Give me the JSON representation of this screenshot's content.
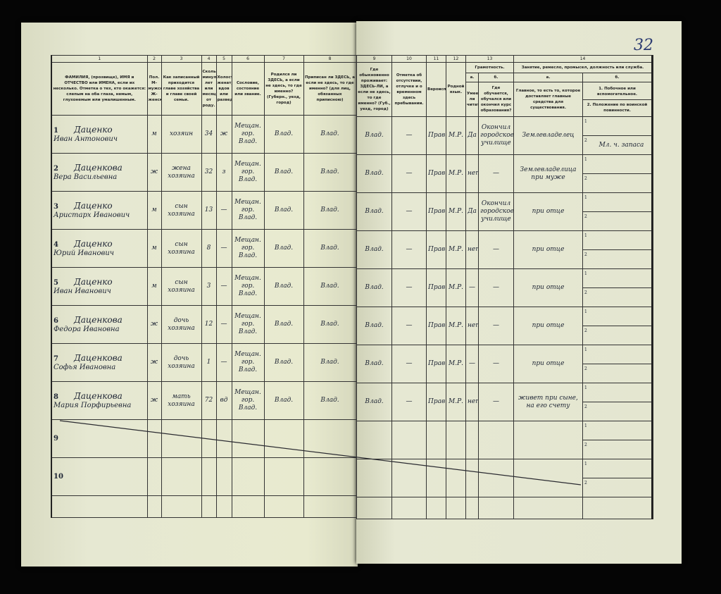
{
  "page_number": "32",
  "column_numbers_left": [
    "1",
    "2",
    "3",
    "4",
    "5",
    "6",
    "7",
    "8"
  ],
  "column_numbers_right": [
    "9",
    "10",
    "11",
    "12",
    "13",
    "14"
  ],
  "headers": {
    "c1": "ФАМИЛИЯ, (прозвище), ИМЯ и ОТЧЕСТВО или ИМЕНА, если их несколько. Отметка о тех, кто окажется: слепым на оба глаза, немым, глухонемым или умалишенным.",
    "c2": "Пол. М-мужской. Ж-женский.",
    "c3": "Как записанный приходится главе хозяйства и главе своей семьи.",
    "c4": "Сколько минуло лет или месяцев от роду.",
    "c5": "Холост, женат, вдов или разведен.",
    "c6": "Сословие, состояние или звание.",
    "c7": "Родился ли ЗДЕСЬ, а если не здесь, то где именно? (Губерн., уезд, город)",
    "c8": "Приписан ли ЗДЕСЬ, а если не здесь, то где именно? (для лиц, обязанных приписною)",
    "c9": "Где обыкновенно проживает: ЗДЕСЬ-ЛИ, а если не здесь, то где именно? (Губ., уезд, город)",
    "c10": "Отметка об отсутствии, отлучке и о временном здесь пребывании.",
    "c11": "Вероисповедание.",
    "c12": "Родной язык.",
    "c13": "Грамотность.",
    "c13a_letter": "а.",
    "c13a": "Умеет ли читать?",
    "c13b_letter": "б.",
    "c13b": "Где обучается, обучался или окончил курс образования?",
    "c14": "Занятие, ремесло, промысел, должность или служба.",
    "c14a_letter": "а.",
    "c14a": "Главное, то есть то, которое доставляет главные средства для существования.",
    "c14b_letter": "б.",
    "c14b1": "1. Побочное или вспомогательное.",
    "c14b2": "2. Положение по воинской повинности."
  },
  "rows": [
    {
      "n": "1",
      "surname": "Даценко",
      "given": "Иван Антонович",
      "sex": "м",
      "relation": "хозяин",
      "age": "34",
      "marital": "ж",
      "estate": "Мещан. гор. Влад.",
      "born": "Влад.",
      "registered": "Влад.",
      "resides": "Влад.",
      "absence": "—",
      "religion": "Прав.",
      "language": "М.Р.",
      "reads": "Да",
      "school": "Окончил городское училище",
      "occupation": "Землевладелец",
      "side": "",
      "military": "Мл. ч. запаса"
    },
    {
      "n": "2",
      "surname": "Даценкова",
      "given": "Вера Васильевна",
      "sex": "ж",
      "relation": "жена хозяина",
      "age": "32",
      "marital": "з",
      "estate": "Мещан. гор. Влад.",
      "born": "Влад.",
      "registered": "Влад.",
      "resides": "Влад.",
      "absence": "—",
      "religion": "Прав.",
      "language": "М.Р.",
      "reads": "нет",
      "school": "—",
      "occupation": "Землевладелица при муже",
      "side": "",
      "military": ""
    },
    {
      "n": "3",
      "surname": "Даценко",
      "given": "Аристарх Иванович",
      "sex": "м",
      "relation": "сын хозяина",
      "age": "13",
      "marital": "—",
      "estate": "Мещан. гор. Влад.",
      "born": "Влад.",
      "registered": "Влад.",
      "resides": "Влад.",
      "absence": "—",
      "religion": "Прав.",
      "language": "М.Р.",
      "reads": "Да",
      "school": "Окончил городское училище",
      "occupation": "при отце",
      "side": "",
      "military": ""
    },
    {
      "n": "4",
      "surname": "Даценко",
      "given": "Юрий Иванович",
      "sex": "м",
      "relation": "сын хозяина",
      "age": "8",
      "marital": "—",
      "estate": "Мещан. гор. Влад.",
      "born": "Влад.",
      "registered": "Влад.",
      "resides": "Влад.",
      "absence": "—",
      "religion": "Прав.",
      "language": "М.Р.",
      "reads": "нет",
      "school": "—",
      "occupation": "при отце",
      "side": "",
      "military": ""
    },
    {
      "n": "5",
      "surname": "Даценко",
      "given": "Иван Иванович",
      "sex": "м",
      "relation": "сын хозяина",
      "age": "3",
      "marital": "—",
      "estate": "Мещан. гор. Влад.",
      "born": "Влад.",
      "registered": "Влад.",
      "resides": "Влад.",
      "absence": "—",
      "religion": "Прав.",
      "language": "М.Р.",
      "reads": "—",
      "school": "—",
      "occupation": "при отце",
      "side": "",
      "military": ""
    },
    {
      "n": "6",
      "surname": "Даценкова",
      "given": "Федора Ивановна",
      "sex": "ж",
      "relation": "дочь хозяина",
      "age": "12",
      "marital": "—",
      "estate": "Мещан. гор. Влад.",
      "born": "Влад.",
      "registered": "Влад.",
      "resides": "Влад.",
      "absence": "—",
      "religion": "Прав.",
      "language": "М.Р.",
      "reads": "нет",
      "school": "—",
      "occupation": "при отце",
      "side": "",
      "military": ""
    },
    {
      "n": "7",
      "surname": "Даценкова",
      "given": "Софья Ивановна",
      "sex": "ж",
      "relation": "дочь хозяина",
      "age": "1",
      "marital": "—",
      "estate": "Мещан. гор. Влад.",
      "born": "Влад.",
      "registered": "Влад.",
      "resides": "Влад.",
      "absence": "—",
      "religion": "Прав.",
      "language": "М.Р.",
      "reads": "—",
      "school": "—",
      "occupation": "при отце",
      "side": "",
      "military": ""
    },
    {
      "n": "8",
      "surname": "Даценкова",
      "given": "Мария Порфирьевна",
      "sex": "ж",
      "relation": "мать хозяина",
      "age": "72",
      "marital": "вд",
      "estate": "Мещан. гор. Влад.",
      "born": "Влад.",
      "registered": "Влад.",
      "resides": "Влад.",
      "absence": "—",
      "religion": "Прав.",
      "language": "М.Р.",
      "reads": "нет",
      "school": "—",
      "occupation": "живет при сыне, на его счету",
      "side": "",
      "military": ""
    },
    {
      "n": "9",
      "surname": "",
      "given": "",
      "sex": "",
      "relation": "",
      "age": "",
      "marital": "",
      "estate": "",
      "born": "",
      "registered": "",
      "resides": "",
      "absence": "",
      "religion": "",
      "language": "",
      "reads": "",
      "school": "",
      "occupation": "",
      "side": "",
      "military": ""
    },
    {
      "n": "10",
      "surname": "",
      "given": "",
      "sex": "",
      "relation": "",
      "age": "",
      "marital": "",
      "estate": "",
      "born": "",
      "registered": "",
      "resides": "",
      "absence": "",
      "religion": "",
      "language": "",
      "reads": "",
      "school": "",
      "occupation": "",
      "side": "",
      "military": ""
    }
  ],
  "sub_labels": {
    "one": "1",
    "two": "2"
  }
}
